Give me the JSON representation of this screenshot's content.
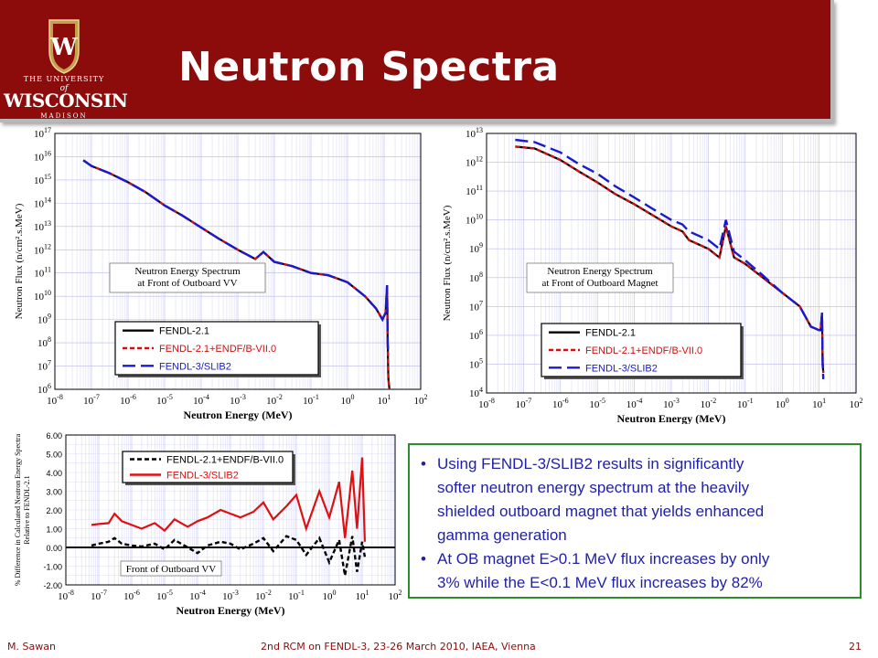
{
  "header": {
    "title": "Neutron Spectra",
    "logo": {
      "line1": "THE UNIVERSITY",
      "line2": "of",
      "line3": "WISCONSIN",
      "line4": "MADISON",
      "crest_letter": "W"
    },
    "colors": {
      "banner": "#8c0c0c",
      "title": "#ffffff"
    }
  },
  "chart_data": [
    {
      "type": "line",
      "panel": "top-left",
      "xlabel": "Neutron Energy (MeV)",
      "ylabel": "Neutron Flux (n/cm².s.MeV)",
      "x_scale": "log",
      "y_scale": "log",
      "xlim": [
        1e-08,
        100
      ],
      "ylim": [
        1000000.0,
        1e+17
      ],
      "x_ticks": [
        "10-8",
        "10-7",
        "10-6",
        "10-5",
        "10-4",
        "10-3",
        "10-2",
        "10-1",
        "100",
        "101",
        "102"
      ],
      "y_ticks": [
        "106",
        "107",
        "108",
        "109",
        "1010",
        "1011",
        "1012",
        "1013",
        "1014",
        "1015",
        "1016",
        "1017"
      ],
      "grid": true,
      "annotation": [
        "Neutron Energy Spectrum",
        "at Front of Outboard VV"
      ],
      "legend": {
        "position": "bottom-left",
        "entries": [
          "FENDL-2.1",
          "FENDL-2.1+ENDF/B-VII.0",
          "FENDL-3/SLIB2"
        ]
      },
      "series": [
        {
          "name": "FENDL-2.1",
          "color": "#000000",
          "style": "solid",
          "x": [
            6e-08,
            1e-07,
            3e-07,
            1e-06,
            3e-06,
            1e-05,
            3e-05,
            0.0001,
            0.0003,
            0.001,
            0.003,
            0.005,
            0.01,
            0.03,
            0.1,
            0.3,
            1,
            3,
            6,
            9,
            11,
            12,
            12.5,
            13,
            14
          ],
          "y": [
            7000000000000000.0,
            4000000000000000.0,
            2000000000000000.0,
            800000000000000.0,
            300000000000000.0,
            80000000000000.0,
            30000000000000.0,
            9000000000000.0,
            3000000000000.0,
            1000000000000.0,
            400000000000.0,
            800000000000.0,
            300000000000.0,
            200000000000.0,
            100000000000.0,
            80000000000.0,
            40000000000.0,
            10000000000.0,
            3000000000.0,
            1000000000.0,
            2000000000.0,
            30000000000.0,
            100000000.0,
            3000000.0,
            1000000.0
          ]
        },
        {
          "name": "FENDL-2.1+ENDF/B-VII.0",
          "color": "#cc1111",
          "style": "dashed",
          "x": [
            6e-08,
            1e-07,
            3e-07,
            1e-06,
            3e-06,
            1e-05,
            3e-05,
            0.0001,
            0.0003,
            0.001,
            0.003,
            0.005,
            0.01,
            0.03,
            0.1,
            0.3,
            1,
            3,
            6,
            9,
            11,
            12,
            12.5,
            13,
            14
          ],
          "y": [
            7000000000000000.0,
            4000000000000000.0,
            2000000000000000.0,
            800000000000000.0,
            300000000000000.0,
            80000000000000.0,
            30000000000000.0,
            9000000000000.0,
            3000000000000.0,
            1000000000000.0,
            400000000000.0,
            800000000000.0,
            300000000000.0,
            200000000000.0,
            100000000000.0,
            80000000000.0,
            40000000000.0,
            10000000000.0,
            3000000000.0,
            1000000000.0,
            2000000000.0,
            30000000000.0,
            100000000.0,
            3000000.0,
            1000000.0
          ]
        },
        {
          "name": "FENDL-3/SLIB2",
          "color": "#1a1acc",
          "style": "longdash",
          "x": [
            6e-08,
            1e-07,
            3e-07,
            1e-06,
            3e-06,
            1e-05,
            3e-05,
            0.0001,
            0.0003,
            0.001,
            0.003,
            0.005,
            0.01,
            0.03,
            0.1,
            0.3,
            1,
            3,
            6,
            9,
            11,
            12,
            12.5,
            13
          ],
          "y": [
            7000000000000000.0,
            4000000000000000.0,
            2000000000000000.0,
            800000000000000.0,
            300000000000000.0,
            80000000000000.0,
            30000000000000.0,
            9000000000000.0,
            3000000000000.0,
            1000000000000.0,
            400000000000.0,
            800000000000.0,
            300000000000.0,
            200000000000.0,
            100000000000.0,
            80000000000.0,
            40000000000.0,
            10000000000.0,
            3000000000.0,
            1000000000.0,
            2000000000.0,
            30000000000.0,
            100000000.0,
            30000000.0
          ]
        }
      ]
    },
    {
      "type": "line",
      "panel": "top-right",
      "xlabel": "Neutron Energy (MeV)",
      "ylabel": "Neutron Flux (n/cm².s.MeV)",
      "x_scale": "log",
      "y_scale": "log",
      "xlim": [
        1e-08,
        100
      ],
      "ylim": [
        10000.0,
        10000000000000.0
      ],
      "x_ticks": [
        "10-8",
        "10-7",
        "10-6",
        "10-5",
        "10-4",
        "10-3",
        "10-2",
        "10-1",
        "100",
        "101",
        "102"
      ],
      "y_ticks": [
        "104",
        "105",
        "106",
        "107",
        "108",
        "109",
        "1010",
        "1011",
        "1012",
        "1013"
      ],
      "grid": true,
      "annotation": [
        "Neutron Energy Spectrum",
        "at Front of Outboard Magnet"
      ],
      "legend": {
        "position": "bottom-left",
        "entries": [
          "FENDL-2.1",
          "FENDL-2.1+ENDF/B-VII.0",
          "FENDL-3/SLIB2"
        ]
      },
      "series": [
        {
          "name": "FENDL-2.1",
          "color": "#000000",
          "style": "solid",
          "x": [
            6e-08,
            2e-07,
            1e-06,
            3e-06,
            1e-05,
            3e-05,
            0.0001,
            0.0003,
            0.001,
            0.002,
            0.003,
            0.01,
            0.02,
            0.03,
            0.05,
            0.1,
            0.3,
            1,
            3,
            6,
            10,
            11,
            12,
            12.5,
            13
          ],
          "y": [
            3500000000000.0,
            3000000000000.0,
            1200000000000.0,
            500000000000.0,
            200000000000.0,
            80000000000.0,
            35000000000.0,
            15000000000.0,
            6000000000.0,
            4000000000.0,
            2000000000.0,
            1000000000.0,
            500000000.0,
            6000000000.0,
            500000000.0,
            300000000.0,
            100000000.0,
            30000000.0,
            10000000.0,
            2000000.0,
            1500000.0,
            1500000.0,
            6000000.0,
            100000.0,
            50000.0
          ]
        },
        {
          "name": "FENDL-2.1+ENDF/B-VII.0",
          "color": "#cc1111",
          "style": "dashed",
          "x": [
            6e-08,
            2e-07,
            1e-06,
            3e-06,
            1e-05,
            3e-05,
            0.0001,
            0.0003,
            0.001,
            0.002,
            0.003,
            0.01,
            0.02,
            0.03,
            0.05,
            0.1,
            0.3,
            1,
            3,
            6,
            10,
            11,
            12,
            12.5,
            13
          ],
          "y": [
            3500000000000.0,
            3000000000000.0,
            1200000000000.0,
            500000000000.0,
            200000000000.0,
            80000000000.0,
            35000000000.0,
            15000000000.0,
            6000000000.0,
            4000000000.0,
            2000000000.0,
            1000000000.0,
            500000000.0,
            6000000000.0,
            500000000.0,
            300000000.0,
            100000000.0,
            30000000.0,
            10000000.0,
            2000000.0,
            1500000.0,
            1500000.0,
            6000000.0,
            100000.0,
            50000.0
          ]
        },
        {
          "name": "FENDL-3/SLIB2",
          "color": "#1a1acc",
          "style": "longdash",
          "x": [
            6e-08,
            2e-07,
            1e-06,
            3e-06,
            1e-05,
            3e-05,
            0.0001,
            0.0003,
            0.001,
            0.002,
            0.003,
            0.01,
            0.02,
            0.03,
            0.05,
            0.1,
            0.3,
            1,
            3,
            6,
            10,
            11,
            12,
            12.5,
            13
          ],
          "y": [
            6000000000000.0,
            5000000000000.0,
            2200000000000.0,
            900000000000.0,
            400000000000.0,
            150000000000.0,
            60000000000.0,
            25000000000.0,
            10000000000.0,
            7000000000.0,
            4000000000.0,
            2000000000.0,
            1000000000.0,
            10000000000.0,
            800000000.0,
            400000000.0,
            120000000.0,
            30000000.0,
            10000000.0,
            2000000.0,
            1500000.0,
            1500000.0,
            6000000.0,
            100000.0,
            30000.0
          ]
        }
      ]
    },
    {
      "type": "line",
      "panel": "bottom-left",
      "xlabel": "Neutron Energy (MeV)",
      "ylabel": "% Difference in Calculated Neutron Energy Spectra Relative to FENDL-2.1",
      "x_scale": "log",
      "xlim": [
        1e-08,
        100
      ],
      "ylim": [
        -2,
        6
      ],
      "x_ticks": [
        "10-8",
        "10-7",
        "10-6",
        "10-5",
        "10-4",
        "10-3",
        "10-2",
        "10-1",
        "100",
        "101",
        "102"
      ],
      "y_ticks": [
        "-2.00",
        "-1.00",
        "0.00",
        "1.00",
        "2.00",
        "3.00",
        "4.00",
        "5.00",
        "6.00"
      ],
      "grid": true,
      "annotation": [
        "Front of Outboard VV"
      ],
      "legend": {
        "position": "top-left",
        "entries": [
          "FENDL-2.1+ENDF/B-VII.0",
          "FENDL-3/SLIB2"
        ]
      },
      "series": [
        {
          "name": "FENDL-2.1+ENDF/B-VII.0",
          "color": "#000000",
          "style": "dashed",
          "x": [
            6e-08,
            1e-07,
            2e-07,
            3e-07,
            5e-07,
            1e-06,
            2e-06,
            5e-06,
            1e-05,
            2e-05,
            5e-05,
            0.0001,
            0.0002,
            0.0005,
            0.001,
            0.002,
            0.005,
            0.01,
            0.02,
            0.05,
            0.1,
            0.2,
            0.5,
            1,
            2,
            3,
            5,
            7,
            10,
            12
          ],
          "y": [
            0.1,
            0.2,
            0.3,
            0.5,
            0.2,
            0.1,
            0.05,
            0.2,
            -0.1,
            0.4,
            0.0,
            -0.3,
            0.1,
            0.3,
            0.2,
            -0.1,
            0.2,
            0.5,
            -0.2,
            0.6,
            0.4,
            -0.4,
            0.5,
            -0.8,
            0.4,
            -1.5,
            0.6,
            -1.3,
            0.3,
            -0.5
          ]
        },
        {
          "name": "FENDL-3/SLIB2",
          "color": "#dd1111",
          "style": "solid",
          "x": [
            6e-08,
            1e-07,
            2e-07,
            3e-07,
            5e-07,
            1e-06,
            2e-06,
            5e-06,
            1e-05,
            2e-05,
            5e-05,
            0.0001,
            0.0002,
            0.0005,
            0.001,
            0.002,
            0.005,
            0.01,
            0.02,
            0.05,
            0.1,
            0.2,
            0.5,
            1,
            2,
            3,
            5,
            7,
            10,
            12
          ],
          "y": [
            1.2,
            1.25,
            1.3,
            1.8,
            1.4,
            1.2,
            1.0,
            1.3,
            0.9,
            1.5,
            1.1,
            1.4,
            1.6,
            2.0,
            1.8,
            1.6,
            1.9,
            2.4,
            1.5,
            2.2,
            2.8,
            1.0,
            3.0,
            1.6,
            3.5,
            0.5,
            4.1,
            1.0,
            4.8,
            0.3
          ]
        }
      ]
    }
  ],
  "textbox": {
    "border_color": "#2e8b2e",
    "text_color": "#1f1fa8",
    "bullets": [
      {
        "lines": [
          "Using FENDL-3/SLIB2 results in significantly",
          "softer neutron energy spectrum at the heavily",
          "shielded outboard magnet that yields enhanced",
          "gamma generation"
        ]
      },
      {
        "lines": [
          "At OB magnet E>0.1 MeV flux increases by only",
          "3% while the E<0.1 MeV flux increases by 82%"
        ]
      }
    ]
  },
  "footer": {
    "author": "M. Sawan",
    "meeting": "2nd RCM on FENDL-3, 23-26 March 2010, IAEA, Vienna",
    "page": "21"
  }
}
